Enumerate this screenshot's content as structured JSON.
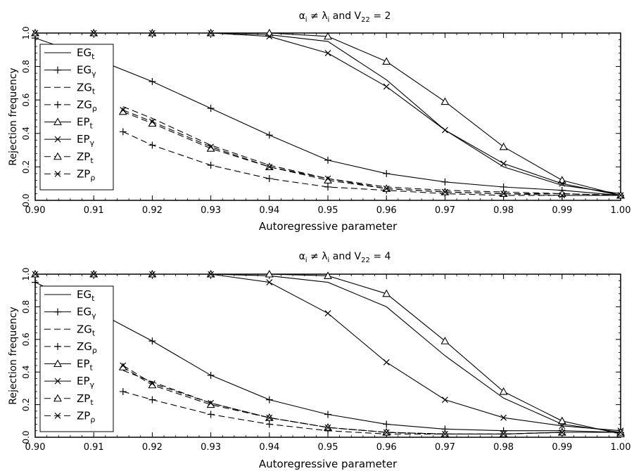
{
  "chart_data": [
    {
      "type": "line",
      "title": {
        "alpha": "α",
        "sub_i": "i",
        "neq": "≠",
        "lambda": "λ",
        "sub_i2": "i",
        "and": "and",
        "V": "V",
        "sub": "22",
        "eq": "=",
        "value": "2"
      },
      "xlabel": "Autoregressive parameter",
      "ylabel": "Rejection frequency",
      "xlim": [
        0.9,
        1.0
      ],
      "ylim": [
        0.0,
        1.0
      ],
      "xticks": [
        "0.90",
        "0.91",
        "0.92",
        "0.93",
        "0.94",
        "0.95",
        "0.96",
        "0.97",
        "0.98",
        "0.99",
        "1.00"
      ],
      "yticks": [
        "0.0",
        "0.2",
        "0.4",
        "0.6",
        "0.8",
        "1.0"
      ],
      "legend_position": "left",
      "series": [
        {
          "name": "EG",
          "sub": "t",
          "style": "solid",
          "marker": "none",
          "x": [
            0.9,
            0.905,
            0.91,
            0.92,
            0.93,
            0.94,
            0.95,
            0.96,
            0.97,
            0.98,
            0.99,
            1.0
          ],
          "y": [
            1.0,
            1.0,
            1.0,
            1.0,
            1.0,
            0.99,
            0.95,
            0.72,
            0.42,
            0.2,
            0.09,
            0.04
          ]
        },
        {
          "name": "EG",
          "sub": "γ",
          "style": "solid",
          "marker": "plus",
          "x": [
            0.9,
            0.91,
            0.92,
            0.93,
            0.94,
            0.95,
            0.96,
            0.97,
            0.98,
            0.99,
            1.0
          ],
          "y": [
            0.97,
            0.85,
            0.71,
            0.55,
            0.39,
            0.24,
            0.16,
            0.11,
            0.08,
            0.06,
            0.03
          ]
        },
        {
          "name": "ZG",
          "sub": "t",
          "style": "dashed",
          "marker": "none",
          "x": [
            0.915,
            0.92,
            0.93,
            0.94,
            0.95,
            0.96,
            0.97,
            0.98,
            0.99,
            1.0
          ],
          "y": [
            0.56,
            0.49,
            0.33,
            0.21,
            0.13,
            0.08,
            0.06,
            0.05,
            0.04,
            0.03
          ]
        },
        {
          "name": "ZG",
          "sub": "ρ",
          "style": "dashed",
          "marker": "plus",
          "x": [
            0.915,
            0.92,
            0.93,
            0.94,
            0.95,
            0.96,
            0.97,
            0.98,
            0.99,
            1.0
          ],
          "y": [
            0.41,
            0.33,
            0.21,
            0.13,
            0.08,
            0.06,
            0.04,
            0.03,
            0.03,
            0.03
          ]
        },
        {
          "name": "EP",
          "sub": "t",
          "style": "solid",
          "marker": "triangle",
          "x": [
            0.9,
            0.91,
            0.92,
            0.93,
            0.94,
            0.95,
            0.96,
            0.97,
            0.98,
            0.99,
            1.0
          ],
          "y": [
            1.0,
            1.0,
            1.0,
            1.0,
            1.0,
            0.98,
            0.83,
            0.59,
            0.32,
            0.12,
            0.03
          ]
        },
        {
          "name": "EP",
          "sub": "γ",
          "style": "solid",
          "marker": "x",
          "x": [
            0.9,
            0.91,
            0.92,
            0.93,
            0.94,
            0.95,
            0.96,
            0.97,
            0.98,
            0.99,
            1.0
          ],
          "y": [
            1.0,
            1.0,
            1.0,
            1.0,
            0.98,
            0.88,
            0.68,
            0.42,
            0.22,
            0.1,
            0.03
          ]
        },
        {
          "name": "ZP",
          "sub": "t",
          "style": "dashed",
          "marker": "triangle",
          "x": [
            0.915,
            0.92,
            0.93,
            0.94,
            0.95,
            0.96,
            0.97,
            0.98,
            0.99,
            1.0
          ],
          "y": [
            0.53,
            0.46,
            0.31,
            0.2,
            0.12,
            0.07,
            0.05,
            0.04,
            0.04,
            0.03
          ]
        },
        {
          "name": "ZP",
          "sub": "ρ",
          "style": "dashed",
          "marker": "x",
          "x": [
            0.915,
            0.92,
            0.93,
            0.94,
            0.95,
            0.96,
            0.97,
            0.98,
            0.99,
            1.0
          ],
          "y": [
            0.54,
            0.47,
            0.32,
            0.2,
            0.13,
            0.07,
            0.05,
            0.04,
            0.03,
            0.03
          ]
        }
      ]
    },
    {
      "type": "line",
      "title": {
        "alpha": "α",
        "sub_i": "i",
        "neq": "≠",
        "lambda": "λ",
        "sub_i2": "i",
        "and": "and",
        "V": "V",
        "sub": "22",
        "eq": "=",
        "value": "4"
      },
      "xlabel": "Autoregressive parameter",
      "ylabel": "Rejection frequency",
      "xlim": [
        0.9,
        1.0
      ],
      "ylim": [
        0.0,
        1.0
      ],
      "xticks": [
        "0.90",
        "0.91",
        "0.92",
        "0.93",
        "0.94",
        "0.95",
        "0.96",
        "0.97",
        "0.98",
        "0.99",
        "1.00"
      ],
      "yticks": [
        "0.0",
        "0.2",
        "0.4",
        "0.6",
        "0.8",
        "1.0"
      ],
      "legend_position": "left",
      "series": [
        {
          "name": "EG",
          "sub": "t",
          "style": "solid",
          "marker": "none",
          "x": [
            0.9,
            0.91,
            0.92,
            0.93,
            0.94,
            0.95,
            0.96,
            0.97,
            0.98,
            0.99,
            1.0
          ],
          "y": [
            1.0,
            1.0,
            1.0,
            1.0,
            0.99,
            0.95,
            0.8,
            0.5,
            0.24,
            0.08,
            0.03
          ]
        },
        {
          "name": "EG",
          "sub": "γ",
          "style": "solid",
          "marker": "plus",
          "x": [
            0.9,
            0.91,
            0.92,
            0.93,
            0.94,
            0.95,
            0.96,
            0.97,
            0.98,
            0.99,
            1.0
          ],
          "y": [
            0.95,
            0.78,
            0.59,
            0.38,
            0.23,
            0.14,
            0.08,
            0.05,
            0.04,
            0.04,
            0.03
          ]
        },
        {
          "name": "ZG",
          "sub": "t",
          "style": "dashed",
          "marker": "none",
          "x": [
            0.915,
            0.92,
            0.93,
            0.94,
            0.95,
            0.96,
            0.97,
            0.98,
            0.99,
            1.0
          ],
          "y": [
            0.41,
            0.34,
            0.21,
            0.12,
            0.06,
            0.03,
            0.02,
            0.02,
            0.03,
            0.03
          ]
        },
        {
          "name": "ZG",
          "sub": "ρ",
          "style": "dashed",
          "marker": "plus",
          "x": [
            0.915,
            0.92,
            0.93,
            0.94,
            0.95,
            0.96,
            0.97,
            0.98,
            0.99,
            1.0
          ],
          "y": [
            0.28,
            0.23,
            0.14,
            0.08,
            0.04,
            0.02,
            0.02,
            0.02,
            0.03,
            0.03
          ]
        },
        {
          "name": "EP",
          "sub": "t",
          "style": "solid",
          "marker": "triangle",
          "x": [
            0.9,
            0.91,
            0.92,
            0.93,
            0.94,
            0.95,
            0.96,
            0.97,
            0.98,
            0.99,
            1.0
          ],
          "y": [
            1.0,
            1.0,
            1.0,
            1.0,
            1.0,
            0.99,
            0.88,
            0.59,
            0.28,
            0.1,
            0.02
          ]
        },
        {
          "name": "EP",
          "sub": "γ",
          "style": "solid",
          "marker": "x",
          "x": [
            0.9,
            0.91,
            0.92,
            0.93,
            0.94,
            0.95,
            0.96,
            0.97,
            0.98,
            0.99,
            1.0
          ],
          "y": [
            1.0,
            1.0,
            1.0,
            1.0,
            0.95,
            0.76,
            0.46,
            0.23,
            0.12,
            0.07,
            0.04
          ]
        },
        {
          "name": "ZP",
          "sub": "t",
          "style": "dashed",
          "marker": "triangle",
          "x": [
            0.915,
            0.92,
            0.93,
            0.94,
            0.95,
            0.96,
            0.97,
            0.98,
            0.99,
            1.0
          ],
          "y": [
            0.43,
            0.32,
            0.2,
            0.12,
            0.06,
            0.03,
            0.02,
            0.02,
            0.03,
            0.03
          ]
        },
        {
          "name": "ZP",
          "sub": "ρ",
          "style": "dashed",
          "marker": "x",
          "x": [
            0.915,
            0.92,
            0.93,
            0.94,
            0.95,
            0.96,
            0.97,
            0.98,
            0.99,
            1.0
          ],
          "y": [
            0.44,
            0.33,
            0.21,
            0.12,
            0.06,
            0.03,
            0.02,
            0.02,
            0.03,
            0.03
          ]
        }
      ]
    }
  ]
}
